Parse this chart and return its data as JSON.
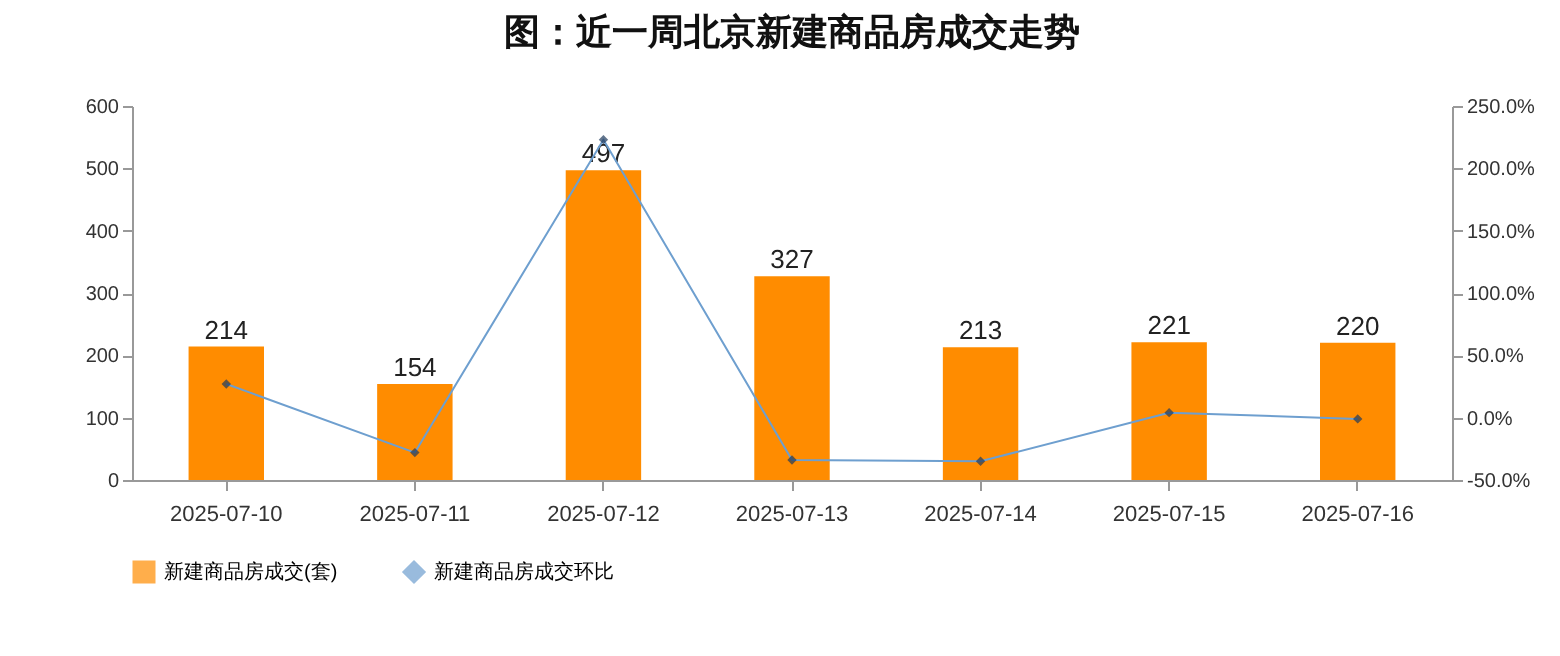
{
  "chart_data": {
    "type": "bar",
    "title": "图：近一周北京新建商品房成交走势",
    "categories": [
      "2025-07-10",
      "2025-07-11",
      "2025-07-12",
      "2025-07-13",
      "2025-07-14",
      "2025-07-15",
      "2025-07-16"
    ],
    "series": [
      {
        "name": "新建商品房成交(套)",
        "color": "#ff8c00",
        "values": [
          214,
          154,
          497,
          327,
          213,
          221,
          220
        ],
        "value_labels": [
          "214",
          "154",
          "497",
          "327",
          "213",
          "221",
          "220"
        ]
      },
      {
        "name": "新建商品房成交环比",
        "type": "line",
        "axis": "y2",
        "color": "#6e9fcf",
        "marker": "diamond",
        "values": [
          27,
          -28,
          223,
          -34,
          -35,
          4,
          -1
        ]
      }
    ],
    "ylim": [
      0,
      600
    ],
    "yticks": [
      0,
      100,
      200,
      300,
      400,
      500,
      600
    ],
    "y2lim": [
      -50,
      250
    ],
    "y2ticks": [
      {
        "value": -50,
        "label": "-50.0%"
      },
      {
        "value": 0,
        "label": "0.0%"
      },
      {
        "value": 50,
        "label": "50.0%"
      },
      {
        "value": 100,
        "label": "100.0%"
      },
      {
        "value": 150,
        "label": "150.0%"
      },
      {
        "value": 200,
        "label": "200.0%"
      },
      {
        "value": 250,
        "label": "250.0%"
      }
    ],
    "legend": "bottom",
    "grid": false
  }
}
